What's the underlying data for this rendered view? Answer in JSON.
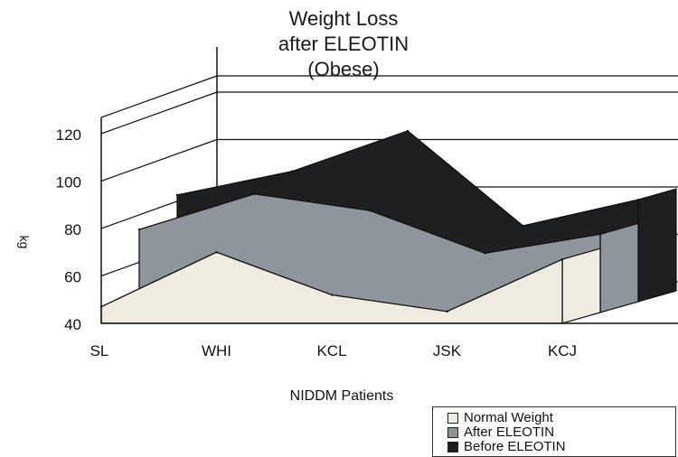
{
  "title": {
    "line1": "Weight Loss",
    "line2": "after ELEOTIN",
    "line3": "(Obese)"
  },
  "colors": {
    "normal": "#efebe0",
    "after": "#8f959c",
    "before": "#1d1f20",
    "grid": "#111111"
  },
  "chart_data": {
    "type": "area",
    "title": "Weight Loss after ELEOTIN (Obese)",
    "xlabel": "NIDDM Patients",
    "ylabel": "kg",
    "categories": [
      "SL",
      "WHI",
      "KCL",
      "JSK",
      "KCJ"
    ],
    "yticks": [
      40,
      60,
      80,
      100,
      120
    ],
    "ylim": [
      40,
      120
    ],
    "grid": true,
    "legend_position": "bottom-right",
    "series": [
      {
        "name": "Normal Weight",
        "values": [
          47,
          70,
          52,
          45,
          67
        ]
      },
      {
        "name": "After ELEOTIN",
        "values": [
          75,
          90,
          83,
          65,
          73
        ]
      },
      {
        "name": "Before ELEOTIN",
        "values": [
          85,
          95,
          112,
          72,
          83
        ]
      }
    ]
  }
}
